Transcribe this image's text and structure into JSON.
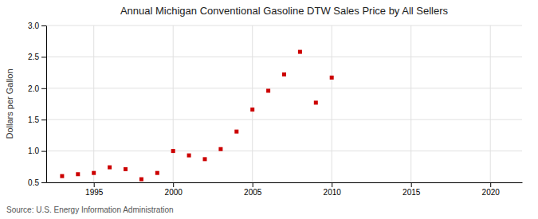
{
  "chart_data": {
    "type": "scatter",
    "title": "Annual Michigan Conventional Gasoline DTW Sales Price by All Sellers",
    "y_label": "Dollars per Gallon",
    "annotations": [
      "Source: U.S. Energy Information Administration"
    ],
    "x": [
      1993,
      1994,
      1995,
      1996,
      1997,
      1998,
      1999,
      2000,
      2001,
      2002,
      2003,
      2004,
      2005,
      2006,
      2007,
      2008,
      2009,
      2010
    ],
    "values": [
      0.6,
      0.63,
      0.65,
      0.74,
      0.71,
      0.55,
      0.65,
      1.0,
      0.93,
      0.87,
      1.03,
      1.31,
      1.66,
      1.96,
      2.22,
      2.58,
      1.77,
      2.17
    ],
    "color": "#cc0000",
    "marker": "square",
    "xlim": [
      1992,
      2022
    ],
    "xticks": [
      1995,
      2000,
      2005,
      2010,
      2015,
      2020
    ],
    "ylim": [
      0.5,
      3.0
    ],
    "yticks": [
      0.5,
      {
        "value": 1.0,
        "label": "1.0"
      },
      1.5,
      {
        "value": 2.0,
        "label": "2.0"
      },
      2.5,
      {
        "value": 3.0,
        "label": "3.0"
      }
    ],
    "grid": true
  }
}
